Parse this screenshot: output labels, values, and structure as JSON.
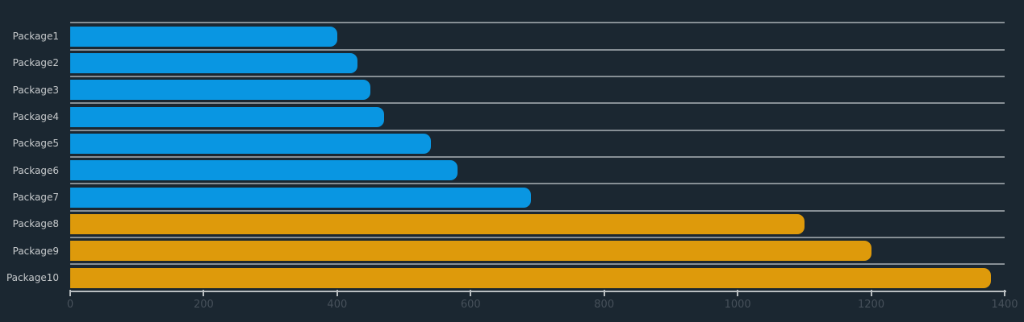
{
  "chart_data": {
    "type": "bar",
    "orientation": "horizontal",
    "title": "",
    "xlabel": "",
    "ylabel": "",
    "categories": [
      "Package1",
      "Package2",
      "Package3",
      "Package4",
      "Package5",
      "Package6",
      "Package7",
      "Package8",
      "Package9",
      "Package10"
    ],
    "values": [
      400,
      430,
      450,
      470,
      540,
      580,
      690,
      1100,
      1200,
      1380
    ],
    "bar_colors": [
      "#0996e2",
      "#0996e2",
      "#0996e2",
      "#0996e2",
      "#0996e2",
      "#0996e2",
      "#0996e2",
      "#de9a0b",
      "#de9a0b",
      "#de9a0b"
    ],
    "xlim": [
      0,
      1400
    ],
    "x_ticks": [
      "0",
      "200",
      "400",
      "600",
      "800",
      "1000",
      "1200",
      "1400"
    ],
    "grid": "horizontal separator line above each category row",
    "legend": "none",
    "colors": {
      "background": "#1b2731",
      "bar_blue": "#0996e2",
      "bar_orange": "#de9a0b",
      "grid_line": "#878f95",
      "axis_line": "#b9bec1",
      "tick_mark": "#b9bec1",
      "tick_label": "#46505a",
      "category_label": "#c7cacc"
    }
  }
}
